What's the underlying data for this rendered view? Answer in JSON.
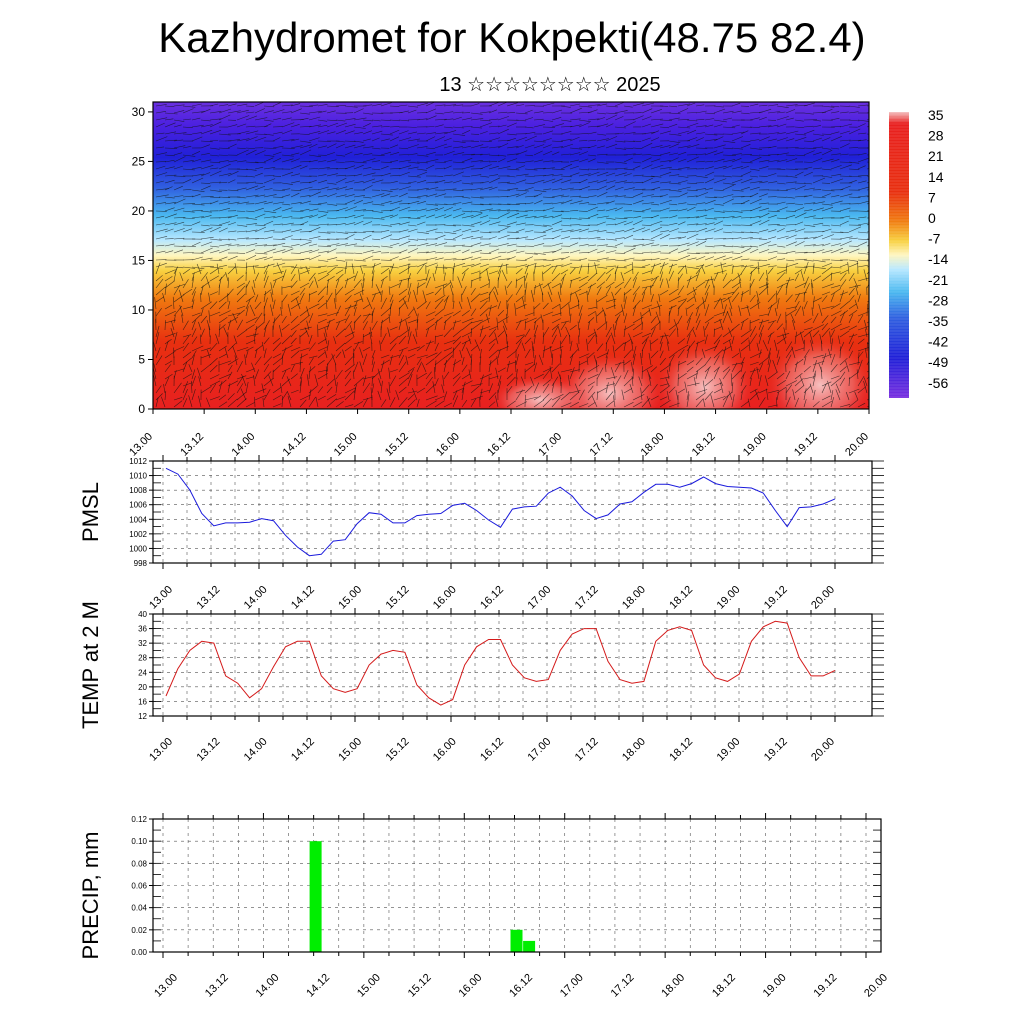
{
  "header": {
    "title": "Kazhydromet for Kokpekti(48.75 82.4)",
    "subtitle": "13 ☆☆☆☆☆☆☆☆ 2025"
  },
  "time_ticks": [
    "13.00",
    "13.12",
    "14.00",
    "14.12",
    "15.00",
    "15.12",
    "16.00",
    "16.12",
    "17.00",
    "17.12",
    "18.00",
    "18.12",
    "19.00",
    "19.12",
    "20.00"
  ],
  "colors": {
    "pmsl_line": "#1a1adc",
    "temp_line": "#d41a1a",
    "precip_bar": "#00ee00"
  },
  "chart_data": [
    {
      "type": "heatmap",
      "title": "",
      "ylim": [
        0,
        31
      ],
      "y_ticks": [
        "0",
        "5",
        "10",
        "15",
        "20",
        "25",
        "30"
      ],
      "colorbar": {
        "labels": [
          "35",
          "28",
          "21",
          "14",
          "7",
          "0",
          "-7",
          "-14",
          "-21",
          "-28",
          "-35",
          "-42",
          "-49",
          "-56"
        ],
        "range": [
          -63,
          42
        ]
      },
      "levels_summary": [
        {
          "y": 0,
          "value": 21
        },
        {
          "y": 8,
          "value": 14
        },
        {
          "y": 13,
          "value": 0
        },
        {
          "y": 16,
          "value": -10
        },
        {
          "y": 20,
          "value": -20
        },
        {
          "y": 25,
          "value": -42
        },
        {
          "y": 30,
          "value": -56
        }
      ]
    },
    {
      "type": "line",
      "ylabel": "PMSL",
      "ylim": [
        998,
        1012
      ],
      "y_ticks": [
        "998",
        "1000",
        "1002",
        "1004",
        "1006",
        "1008",
        "1010",
        "1012"
      ],
      "series": [
        {
          "values": [
            1011,
            1010.2,
            1008,
            1004.8,
            1003.1,
            1003.5,
            1003.5,
            1003.6,
            1004.1,
            1003.8,
            1001.8,
            1000.2,
            999,
            999.2,
            1001,
            1001.2,
            1003.4,
            1004.9,
            1004.7,
            1003.5,
            1003.5,
            1004.5,
            1004.7,
            1004.8,
            1005.9,
            1006.2,
            1005.2,
            1003.9,
            1002.9,
            1005.4,
            1005.7,
            1005.8,
            1007.6,
            1008.4,
            1007.2,
            1005.2,
            1004.1,
            1004.6,
            1006.1,
            1006.4,
            1007.7,
            1008.8,
            1008.8,
            1008.4,
            1008.9,
            1009.8,
            1008.9,
            1008.5,
            1008.4,
            1008.3,
            1007.6,
            1005.2,
            1003,
            1005.6,
            1005.7,
            1006.1,
            1006.8
          ]
        }
      ]
    },
    {
      "type": "line",
      "ylabel": "TEMP at 2 M",
      "ylim": [
        12,
        40
      ],
      "y_ticks": [
        "12",
        "16",
        "20",
        "24",
        "28",
        "32",
        "36",
        "40"
      ],
      "series": [
        {
          "values": [
            17.5,
            25,
            30,
            32.5,
            32,
            23,
            21,
            17,
            19.5,
            25.5,
            31,
            32.5,
            32.5,
            23,
            19.5,
            18.5,
            19.5,
            26,
            29,
            30,
            29.5,
            20.5,
            17,
            15,
            16.5,
            26,
            31,
            33,
            33,
            26,
            22.5,
            21.5,
            22,
            30,
            34.5,
            36,
            36,
            27,
            22,
            21,
            21.5,
            32.5,
            35.5,
            36.5,
            35.5,
            26,
            22.5,
            21.5,
            23.5,
            32.5,
            36.5,
            38,
            37.5,
            28,
            23,
            23,
            24.5
          ]
        }
      ]
    },
    {
      "type": "bar",
      "ylabel": "PRECIP, mm",
      "ylim": [
        0,
        0.12
      ],
      "y_ticks": [
        "0.00",
        "0.02",
        "0.04",
        "0.06",
        "0.08",
        "0.10",
        "0.12"
      ],
      "x_ticks": [
        "13.00",
        "13.12",
        "14.00",
        "14.12",
        "15.00",
        "15.12",
        "16.00",
        "16.12",
        "17.00",
        "17.12",
        "18.00",
        "18.12",
        "19.00",
        "19.12",
        "20.00"
      ],
      "bars": [
        {
          "x": "14.12",
          "value": 0.1
        },
        {
          "x": "16.12",
          "value": 0.02
        },
        {
          "x": "16.15",
          "value": 0.01
        }
      ]
    }
  ]
}
